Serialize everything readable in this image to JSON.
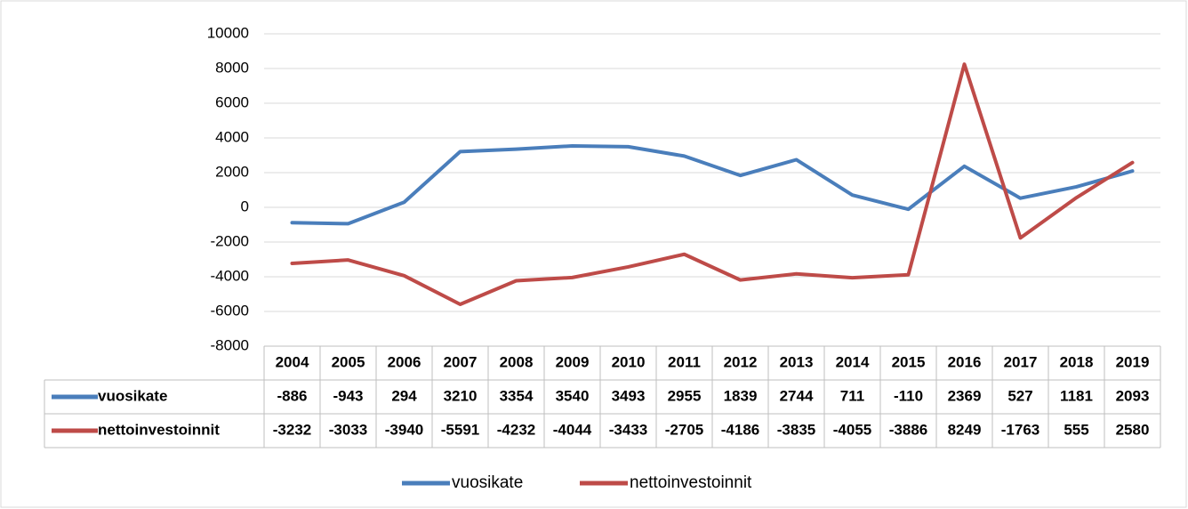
{
  "chart_data": {
    "type": "line",
    "categories": [
      "2004",
      "2005",
      "2006",
      "2007",
      "2008",
      "2009",
      "2010",
      "2011",
      "2012",
      "2013",
      "2014",
      "2015",
      "2016",
      "2017",
      "2018",
      "2019"
    ],
    "series": [
      {
        "name": "vuosikate",
        "color": "#4a7ebb",
        "values": [
          -886,
          -943,
          294,
          3210,
          3354,
          3540,
          3493,
          2955,
          1839,
          2744,
          711,
          -110,
          2369,
          527,
          1181,
          2093
        ]
      },
      {
        "name": "nettoinvestoinnit",
        "color": "#be4b48",
        "values": [
          -3232,
          -3033,
          -3940,
          -5591,
          -4232,
          -4044,
          -3433,
          -2705,
          -4186,
          -3835,
          -4055,
          -3886,
          8249,
          -1763,
          555,
          2580
        ]
      }
    ],
    "ylim": [
      -8000,
      10000
    ],
    "yticks": [
      -8000,
      -6000,
      -4000,
      -2000,
      0,
      2000,
      4000,
      6000,
      8000,
      10000
    ],
    "grid": true,
    "legend": "bottom"
  }
}
